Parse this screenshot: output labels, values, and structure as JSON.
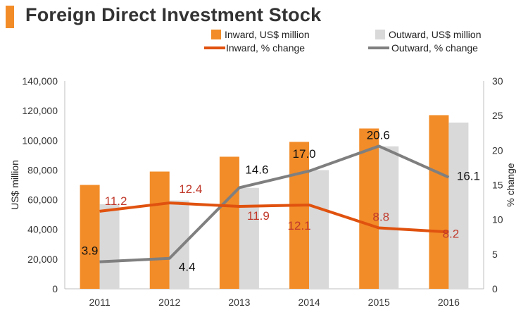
{
  "title": "Foreign Direct Investment Stock",
  "colors": {
    "accent": "#F28C28",
    "inward_bar": "#F28C28",
    "outward_bar": "#D9D9D9",
    "inward_line": "#E0520F",
    "outward_line": "#7F7F7F",
    "inward_label": "#C0392B",
    "outward_label": "#111111"
  },
  "chart_data": {
    "type": "bar",
    "title": "Foreign Direct Investment Stock",
    "categories": [
      "2011",
      "2012",
      "2013",
      "2014",
      "2015",
      "2016"
    ],
    "series": [
      {
        "name": "Inward, US$ million",
        "kind": "bar",
        "axis": "left",
        "values": [
          70000,
          79000,
          89000,
          99000,
          108000,
          117000
        ]
      },
      {
        "name": "Outward, US$ million",
        "kind": "bar",
        "axis": "left",
        "values": [
          57000,
          59500,
          68000,
          80000,
          96000,
          112000
        ]
      },
      {
        "name": "Inward, % change",
        "kind": "line",
        "axis": "right",
        "values": [
          11.2,
          12.4,
          11.9,
          12.1,
          8.8,
          8.2
        ],
        "labels": [
          "11.2",
          "12.4",
          "11.9",
          "12.1",
          "8.8",
          "8.2"
        ]
      },
      {
        "name": "Outward, % change",
        "kind": "line",
        "axis": "right",
        "values": [
          3.9,
          4.4,
          14.6,
          17.0,
          20.6,
          16.1
        ],
        "labels": [
          "3.9",
          "4.4",
          "14.6",
          "17.0",
          "20.6",
          "16.1"
        ]
      }
    ],
    "ylabel": "US$ million",
    "y2label": "% change",
    "ylim": [
      0,
      140000
    ],
    "y2lim": [
      0,
      30
    ],
    "yticks": [
      "0",
      "20,000",
      "40,000",
      "60,000",
      "80,000",
      "100,000",
      "120,000",
      "140,000"
    ],
    "y2ticks": [
      "0",
      "5",
      "10",
      "15",
      "20",
      "25",
      "30"
    ],
    "legend_position": "top"
  }
}
